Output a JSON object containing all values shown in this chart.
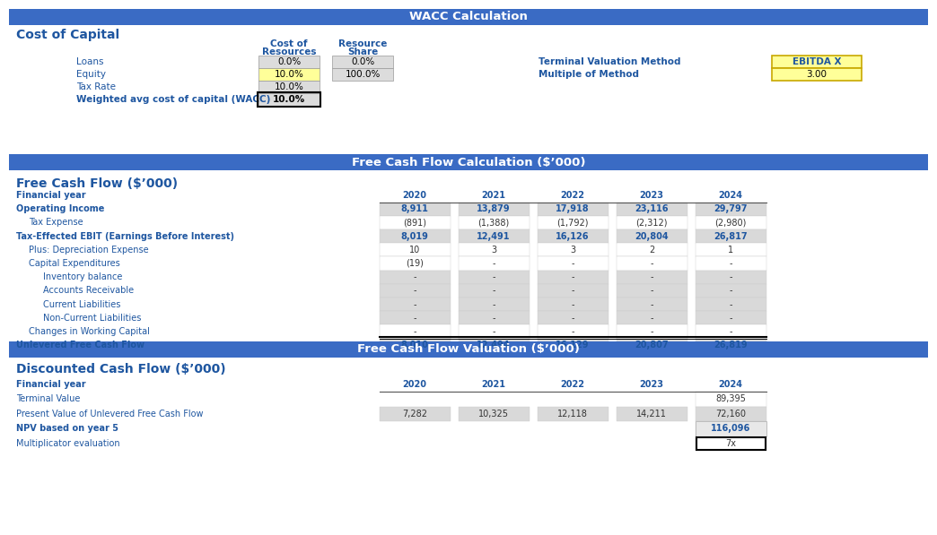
{
  "title1": "WACC Calculation",
  "title2": "Free Cash Flow Calculation ($’000)",
  "title3": "Free Cash Flow Valuation ($’000)",
  "section1_header": "Cost of Capital",
  "section2_header": "Free Cash Flow ($’000)",
  "section3_header": "Discounted Cash Flow ($’000)",
  "header_bg": "#3A6BC4",
  "header_text": "#FFFFFF",
  "blue_text": "#1E56A0",
  "label_blue": "#2E75B6",
  "wacc_rows": [
    {
      "label": "Loans",
      "cost": "0.0%",
      "share": "0.0%",
      "bold": false,
      "cost_bg": "#DCDCDC",
      "share_bg": "#DCDCDC"
    },
    {
      "label": "Equity",
      "cost": "10.0%",
      "share": "100.0%",
      "bold": false,
      "cost_bg": "#FFFF99",
      "share_bg": "#DCDCDC"
    },
    {
      "label": "Tax Rate",
      "cost": "10.0%",
      "share": "",
      "bold": false,
      "cost_bg": "#DCDCDC",
      "share_bg": ""
    },
    {
      "label": "Weighted avg cost of capital (WACC)",
      "cost": "10.0%",
      "share": "",
      "bold": true,
      "cost_bg": "#DCDCDC",
      "share_bg": ""
    }
  ],
  "terminal_label": "Terminal Valuation Method",
  "terminal_value": "EBITDA X",
  "multiple_label": "Multiple of Method",
  "multiple_value": "3.00",
  "fcf_rows": [
    {
      "label": "Financial year",
      "values": [
        "2020",
        "2021",
        "2022",
        "2023",
        "2024"
      ],
      "bold": true,
      "header": true,
      "bg": "#FFFFFF",
      "indent": 0
    },
    {
      "label": "Operating Income",
      "values": [
        "8,911",
        "13,879",
        "17,918",
        "23,116",
        "29,797"
      ],
      "bold": true,
      "header": false,
      "bg": "#D9D9D9",
      "indent": 0
    },
    {
      "label": "Tax Expense",
      "values": [
        "(891)",
        "(1,388)",
        "(1,792)",
        "(2,312)",
        "(2,980)"
      ],
      "bold": false,
      "header": false,
      "bg": "#FFFFFF",
      "indent": 1
    },
    {
      "label": "Tax-Effected EBIT (Earnings Before Interest)",
      "values": [
        "8,019",
        "12,491",
        "16,126",
        "20,804",
        "26,817"
      ],
      "bold": true,
      "header": false,
      "bg": "#D9D9D9",
      "indent": 0
    },
    {
      "label": "Plus: Depreciation Expense",
      "values": [
        "10",
        "3",
        "3",
        "2",
        "1"
      ],
      "bold": false,
      "header": false,
      "bg": "#FFFFFF",
      "indent": 1
    },
    {
      "label": "Capital Expenditures",
      "values": [
        "(19)",
        "-",
        "-",
        "-",
        "-"
      ],
      "bold": false,
      "header": false,
      "bg": "#FFFFFF",
      "indent": 1
    },
    {
      "label": "Inventory balance",
      "values": [
        "-",
        "-",
        "-",
        "-",
        "-"
      ],
      "bold": false,
      "header": false,
      "bg": "#D9D9D9",
      "indent": 2
    },
    {
      "label": "Accounts Receivable",
      "values": [
        "-",
        "-",
        "-",
        "-",
        "-"
      ],
      "bold": false,
      "header": false,
      "bg": "#D9D9D9",
      "indent": 2
    },
    {
      "label": "Current Liabilities",
      "values": [
        "-",
        "-",
        "-",
        "-",
        "-"
      ],
      "bold": false,
      "header": false,
      "bg": "#D9D9D9",
      "indent": 2
    },
    {
      "label": "Non-Current Liabilities",
      "values": [
        "-",
        "-",
        "-",
        "-",
        "-"
      ],
      "bold": false,
      "header": false,
      "bg": "#D9D9D9",
      "indent": 2
    },
    {
      "label": "Changes in Working Capital",
      "values": [
        "-",
        "-",
        "-",
        "-",
        "-"
      ],
      "bold": false,
      "header": false,
      "bg": "#FFFFFF",
      "indent": 1
    },
    {
      "label": "Unlevered Free Cash Flow",
      "values": [
        "8,010",
        "12,494",
        "16,129",
        "20,807",
        "26,819"
      ],
      "bold": true,
      "header": false,
      "bg": "#D9D9D9",
      "indent": 0,
      "thick_border_top": true
    }
  ],
  "dcf_rows": [
    {
      "label": "Financial year",
      "values": [
        "2020",
        "2021",
        "2022",
        "2023",
        "2024"
      ],
      "bold": true,
      "header": true,
      "bg": "#FFFFFF",
      "indent": 0
    },
    {
      "label": "Terminal Value",
      "values": [
        "",
        "",
        "",
        "",
        "89,395"
      ],
      "bold": false,
      "header": false,
      "bg": "#FFFFFF",
      "indent": 0
    },
    {
      "label": "Present Value of Unlevered Free Cash Flow",
      "values": [
        "7,282",
        "10,325",
        "12,118",
        "14,211",
        "72,160"
      ],
      "bold": false,
      "header": false,
      "bg": "#D9D9D9",
      "indent": 0
    },
    {
      "label": "NPV based on year 5",
      "values": [
        "",
        "",
        "",
        "",
        "116,096"
      ],
      "bold": true,
      "header": false,
      "bg": "#FFFFFF",
      "indent": 0
    },
    {
      "label": "Multiplicator evaluation",
      "values": [
        "",
        "",
        "",
        "",
        "7x"
      ],
      "bold": false,
      "header": false,
      "bg": "#FFFFFF",
      "indent": 0,
      "boxed_last": true
    }
  ],
  "bg_white": "#FFFFFF",
  "bg_light_gray": "#E8E8E8",
  "bg_gray": "#D9D9D9",
  "yellow_bg": "#FFFF99",
  "yellow_border": "#C8A800"
}
